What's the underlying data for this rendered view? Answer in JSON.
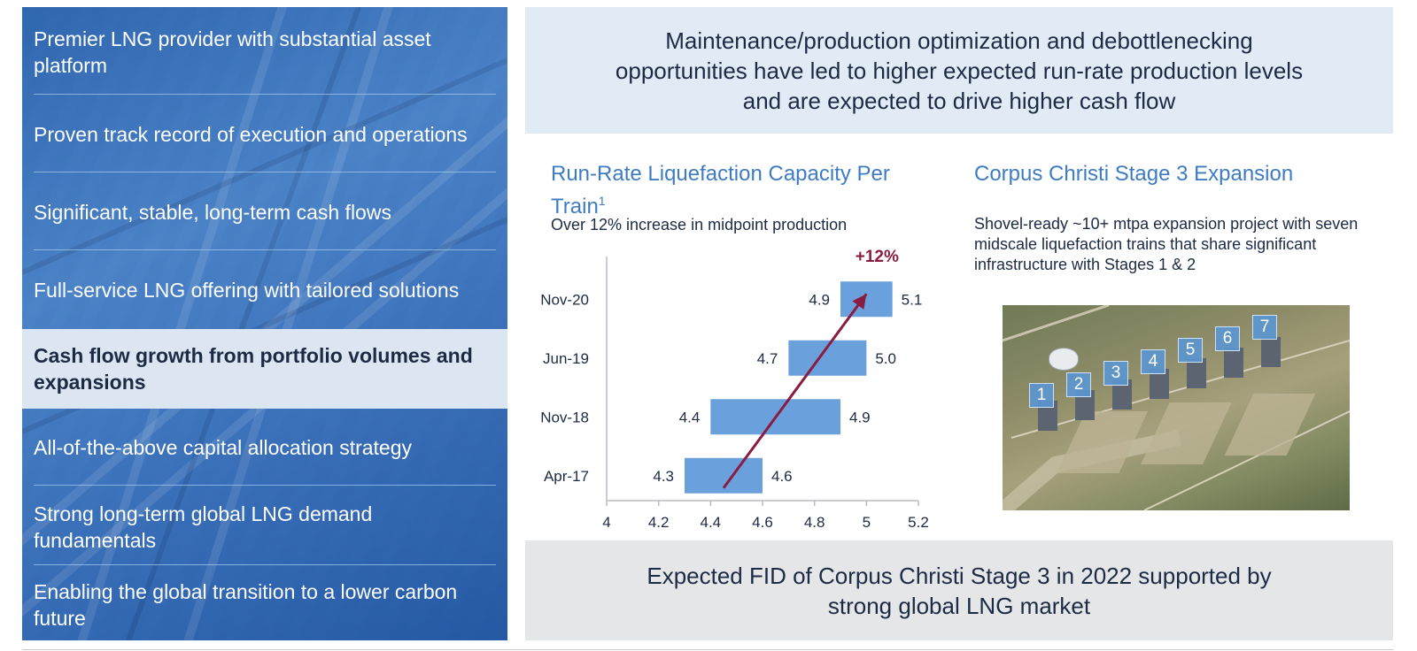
{
  "left_panel": {
    "items": [
      {
        "label": "Premier LNG provider with substantial asset platform"
      },
      {
        "label": "Proven track record of execution and operations"
      },
      {
        "label": "Significant, stable, long-term cash flows"
      },
      {
        "label": "Full-service LNG offering with tailored solutions"
      },
      {
        "label": "Cash flow growth from portfolio volumes and expansions"
      },
      {
        "label": "All-of-the-above capital allocation strategy"
      },
      {
        "label": "Strong long-term global LNG demand fundamentals"
      },
      {
        "label": "Enabling the global transition to a lower carbon future"
      }
    ]
  },
  "top_box": {
    "text": "Maintenance/production optimization and debottlenecking opportunities have led to higher expected run-rate production levels and are expected to drive higher cash flow"
  },
  "chart_section": {
    "title": "Run-Rate Liquefaction Capacity Per Train",
    "footnote_marker": "1",
    "subtitle": "Over 12% increase in midpoint production"
  },
  "corpus": {
    "title": "Corpus Christi Stage 3 Expansion",
    "description": "Shovel-ready ~10+ mtpa expansion project with seven midscale liquefaction trains that share significant infrastructure with Stages 1 & 2",
    "train_labels": [
      "1",
      "2",
      "3",
      "4",
      "5",
      "6",
      "7"
    ]
  },
  "bottom_box": {
    "text": "Expected FID of Corpus Christi Stage 3 in 2022 supported by strong global LNG market"
  },
  "chart_data": {
    "type": "bar",
    "subtype": "floating-range-horizontal",
    "title": "Run-Rate Liquefaction Capacity Per Train",
    "subtitle": "Over 12% increase in midpoint production",
    "categories": [
      "Nov-20",
      "Jun-19",
      "Nov-18",
      "Apr-17"
    ],
    "series": [
      {
        "name": "low",
        "values": [
          4.9,
          4.7,
          4.4,
          4.3
        ]
      },
      {
        "name": "high",
        "values": [
          5.1,
          5.0,
          4.9,
          4.6
        ]
      }
    ],
    "xlim": [
      4,
      5.2
    ],
    "xticks": [
      "4",
      "4.2",
      "4.4",
      "4.6",
      "4.8",
      "5",
      "5.2"
    ],
    "xtick_values": [
      4,
      4.2,
      4.4,
      4.6,
      4.8,
      5,
      5.2
    ],
    "low_labels": [
      "4.9",
      "4.7",
      "4.4",
      "4.3"
    ],
    "high_labels": [
      "5.1",
      "5.0",
      "4.9",
      "4.6"
    ],
    "annotation": {
      "text": "+12%",
      "arrow_from": {
        "x": 4.45,
        "category": "Apr-17"
      },
      "arrow_to": {
        "x": 5.0,
        "category": "Nov-20"
      }
    },
    "bar_color": "#6aa1dc",
    "arrow_color": "#8a1c44",
    "grid": false
  }
}
